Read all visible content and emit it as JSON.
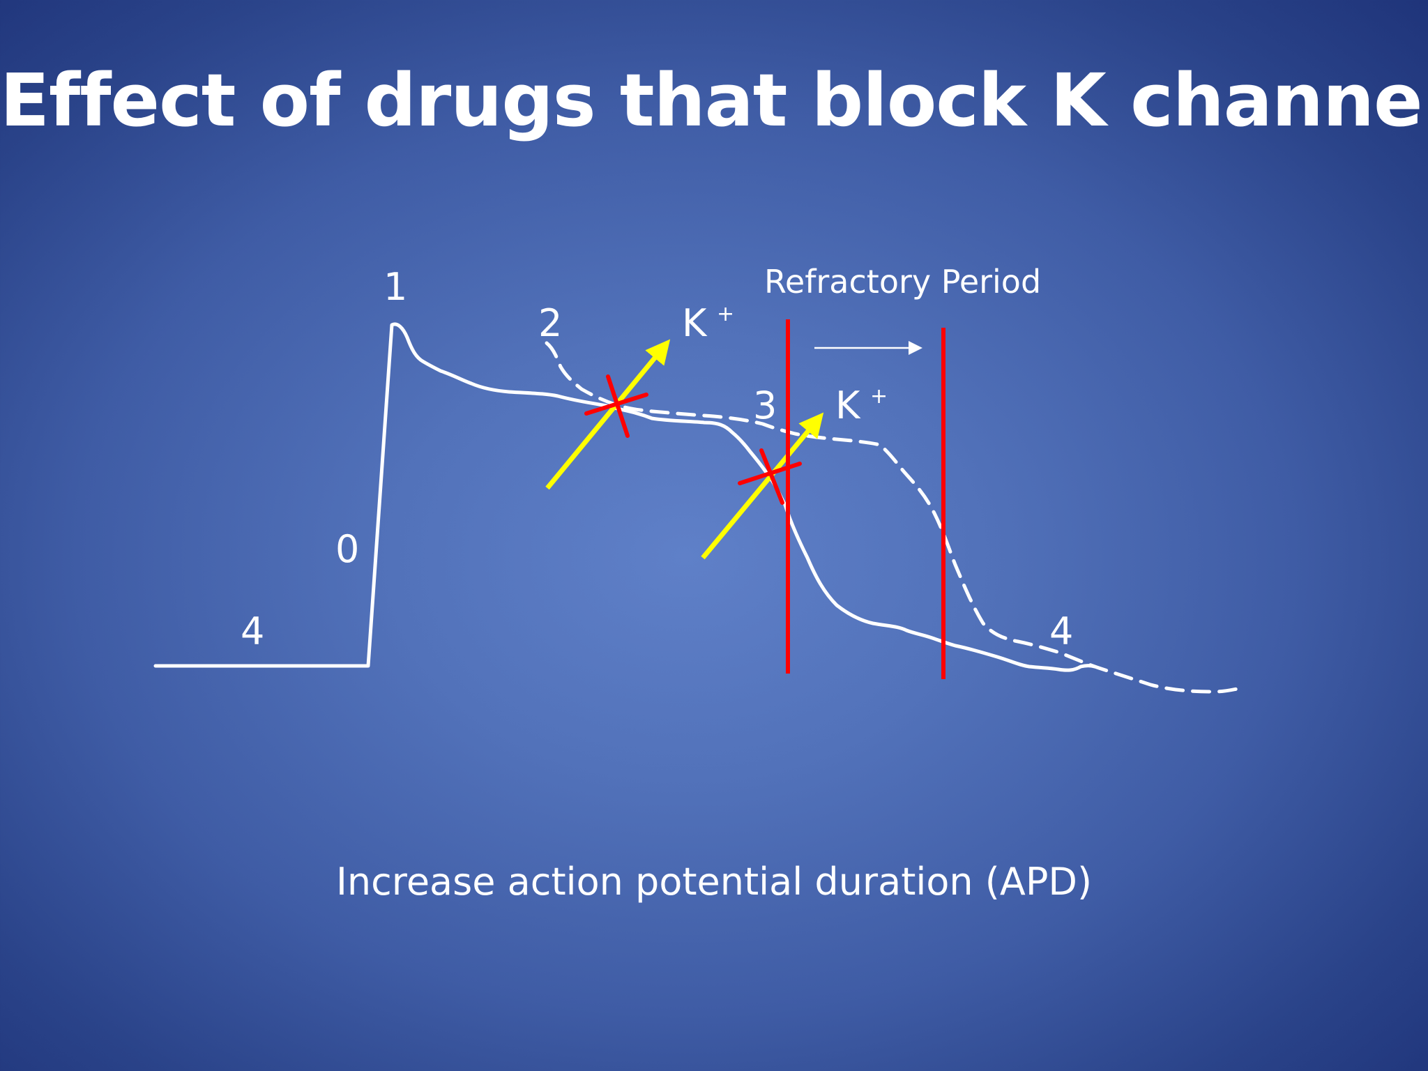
{
  "slide": {
    "title": "Effect of drugs that block K channels",
    "caption": "Increase action potential duration (APD)"
  },
  "diagram": {
    "phase_labels": {
      "phase_4_left": "4",
      "phase_0": "0",
      "phase_1": "1",
      "phase_2": "2",
      "phase_3": "3",
      "phase_4_right": "4"
    },
    "ion_labels": [
      {
        "symbol": "K",
        "charge": "+"
      },
      {
        "symbol": "K",
        "charge": "+"
      }
    ],
    "refractory_label": "Refractory Period",
    "colors": {
      "background": "#4a68b0",
      "trace": "#ffffff",
      "k_arrow": "#ffff00",
      "block_mark": "#ff0000",
      "refractory_line": "#ff0000"
    }
  }
}
